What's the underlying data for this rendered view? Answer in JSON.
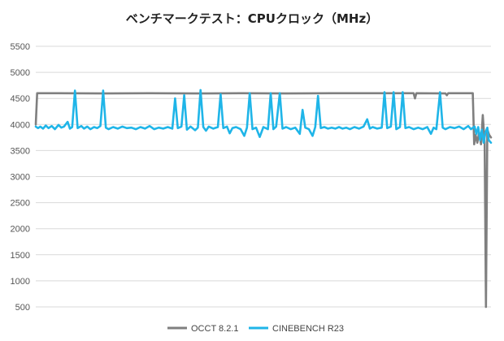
{
  "chart_data": {
    "type": "line",
    "title": "ベンチマークテスト：CPUクロック（MHz）",
    "xlabel": "",
    "ylabel": "",
    "ylim": [
      500,
      5500
    ],
    "yticks": [
      5500,
      5000,
      4500,
      4000,
      3500,
      3000,
      2500,
      2000,
      1500,
      1000,
      500
    ],
    "grid": "horizontal",
    "legend_position": "bottom",
    "xlim": [
      0,
      100
    ],
    "series": [
      {
        "name": "OCCT 8.2.1",
        "color": "#7f7f7f",
        "points": [
          [
            0,
            4000
          ],
          [
            0.3,
            4600
          ],
          [
            5,
            4600
          ],
          [
            15,
            4595
          ],
          [
            25,
            4600
          ],
          [
            35,
            4595
          ],
          [
            45,
            4600
          ],
          [
            55,
            4595
          ],
          [
            65,
            4600
          ],
          [
            75,
            4600
          ],
          [
            83,
            4600
          ],
          [
            83.3,
            4500
          ],
          [
            83.6,
            4600
          ],
          [
            90,
            4595
          ],
          [
            90.3,
            4560
          ],
          [
            90.6,
            4600
          ],
          [
            96,
            4600
          ],
          [
            96.3,
            3620
          ],
          [
            96.6,
            3800
          ],
          [
            97,
            3650
          ],
          [
            97.4,
            3850
          ],
          [
            97.8,
            3620
          ],
          [
            98.2,
            4180
          ],
          [
            98.6,
            3650
          ],
          [
            98.9,
            500
          ],
          [
            99.2,
            3900
          ],
          [
            99.6,
            3800
          ],
          [
            100,
            3750
          ]
        ]
      },
      {
        "name": "CINEBENCH R23",
        "color": "#1fb5e8",
        "points": [
          [
            0,
            3960
          ],
          [
            0.5,
            3930
          ],
          [
            1,
            3960
          ],
          [
            1.6,
            3920
          ],
          [
            2.2,
            3980
          ],
          [
            2.8,
            3930
          ],
          [
            3.5,
            3970
          ],
          [
            4.2,
            3910
          ],
          [
            5,
            3990
          ],
          [
            5.6,
            3940
          ],
          [
            6.2,
            3960
          ],
          [
            7,
            4050
          ],
          [
            7.5,
            3920
          ],
          [
            8,
            3950
          ],
          [
            8.6,
            4650
          ],
          [
            9.2,
            3930
          ],
          [
            10,
            3970
          ],
          [
            10.6,
            3920
          ],
          [
            11.3,
            3960
          ],
          [
            12,
            3910
          ],
          [
            12.8,
            3950
          ],
          [
            13.5,
            3930
          ],
          [
            14.2,
            3970
          ],
          [
            14.8,
            4650
          ],
          [
            15.4,
            3940
          ],
          [
            16,
            3910
          ],
          [
            17,
            3950
          ],
          [
            18,
            3920
          ],
          [
            19,
            3960
          ],
          [
            20,
            3930
          ],
          [
            21,
            3940
          ],
          [
            22,
            3910
          ],
          [
            23,
            3950
          ],
          [
            24,
            3920
          ],
          [
            25,
            3970
          ],
          [
            26,
            3910
          ],
          [
            27,
            3940
          ],
          [
            28,
            3920
          ],
          [
            29,
            3950
          ],
          [
            30,
            3920
          ],
          [
            30.6,
            4500
          ],
          [
            31.2,
            3930
          ],
          [
            32,
            3960
          ],
          [
            32.6,
            4560
          ],
          [
            33.2,
            3900
          ],
          [
            34,
            3960
          ],
          [
            35,
            3890
          ],
          [
            35.6,
            3940
          ],
          [
            36.2,
            4660
          ],
          [
            36.8,
            3950
          ],
          [
            37.4,
            3880
          ],
          [
            38,
            3960
          ],
          [
            39,
            3920
          ],
          [
            40,
            3950
          ],
          [
            40.6,
            4580
          ],
          [
            41.2,
            3930
          ],
          [
            42,
            3960
          ],
          [
            42.6,
            3830
          ],
          [
            43.2,
            3930
          ],
          [
            44,
            3950
          ],
          [
            45,
            3910
          ],
          [
            45.8,
            3780
          ],
          [
            46.4,
            3940
          ],
          [
            47,
            4600
          ],
          [
            47.6,
            3910
          ],
          [
            48.4,
            3940
          ],
          [
            49.2,
            3760
          ],
          [
            50,
            3950
          ],
          [
            51,
            3910
          ],
          [
            51.6,
            4600
          ],
          [
            52.2,
            3910
          ],
          [
            52.8,
            3960
          ],
          [
            53.6,
            4600
          ],
          [
            54.2,
            3920
          ],
          [
            55,
            3950
          ],
          [
            56,
            3910
          ],
          [
            57,
            3940
          ],
          [
            58,
            3820
          ],
          [
            58.6,
            4280
          ],
          [
            59.2,
            3940
          ],
          [
            60,
            3910
          ],
          [
            60.8,
            3780
          ],
          [
            61.4,
            3950
          ],
          [
            62,
            4550
          ],
          [
            62.6,
            3930
          ],
          [
            63.4,
            3950
          ],
          [
            64.2,
            3920
          ],
          [
            65,
            3940
          ],
          [
            65.8,
            3920
          ],
          [
            66.6,
            3950
          ],
          [
            67.4,
            3920
          ],
          [
            68.2,
            3940
          ],
          [
            69,
            3910
          ],
          [
            70,
            3950
          ],
          [
            71,
            3920
          ],
          [
            72,
            3960
          ],
          [
            72.8,
            4100
          ],
          [
            73.4,
            3920
          ],
          [
            74,
            3950
          ],
          [
            75,
            3920
          ],
          [
            76,
            3940
          ],
          [
            76.6,
            4620
          ],
          [
            77.2,
            3930
          ],
          [
            78,
            3960
          ],
          [
            78.6,
            4620
          ],
          [
            79.2,
            3910
          ],
          [
            80,
            3950
          ],
          [
            80.6,
            4620
          ],
          [
            81.2,
            3930
          ],
          [
            82,
            3950
          ],
          [
            83,
            3910
          ],
          [
            84,
            3940
          ],
          [
            85,
            3910
          ],
          [
            86,
            3950
          ],
          [
            86.8,
            3820
          ],
          [
            87.4,
            3940
          ],
          [
            88,
            3910
          ],
          [
            88.8,
            4620
          ],
          [
            89.4,
            3940
          ],
          [
            90,
            3910
          ],
          [
            91,
            3950
          ],
          [
            92,
            3930
          ],
          [
            93,
            3960
          ],
          [
            94,
            3910
          ],
          [
            95,
            3970
          ],
          [
            95.6,
            3910
          ],
          [
            96.4,
            3960
          ],
          [
            96.8,
            3820
          ],
          [
            97.2,
            3950
          ],
          [
            97.6,
            3700
          ],
          [
            98,
            3900
          ],
          [
            98.4,
            3650
          ],
          [
            98.8,
            3850
          ],
          [
            99.2,
            3940
          ],
          [
            99.5,
            3700
          ],
          [
            100,
            3650
          ]
        ]
      }
    ]
  }
}
